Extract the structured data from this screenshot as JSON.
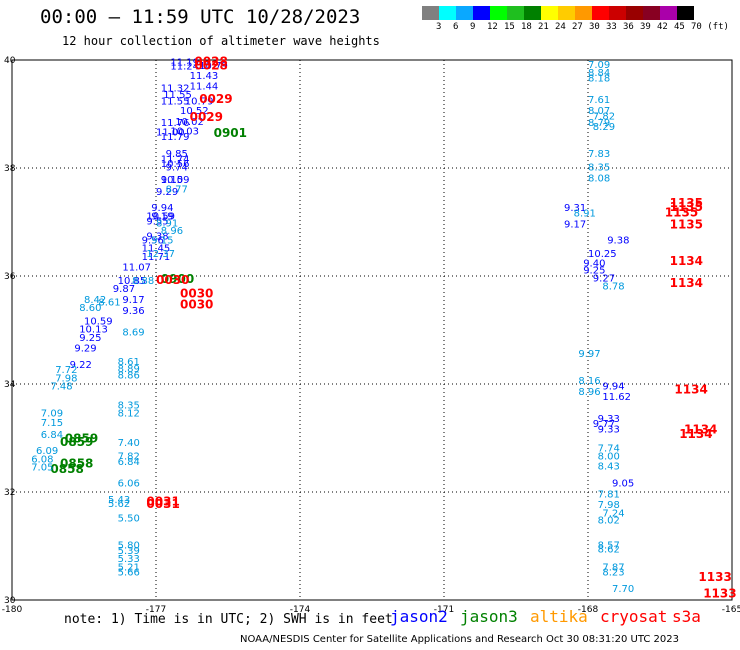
{
  "header": {
    "title": "00:00 – 11:59 UTC 10/28/2023",
    "subtitle": "12 hour collection of altimeter wave heights"
  },
  "colorbar": {
    "colors": [
      "#808080",
      "#00ffff",
      "#0aa8ff",
      "#0000ff",
      "#00ff00",
      "#1fbf1f",
      "#008000",
      "#ffff00",
      "#ffcc00",
      "#ff9900",
      "#ff0000",
      "#cc0000",
      "#990000",
      "#880022",
      "#aa00aa",
      "#000000"
    ],
    "labels": [
      "3",
      "6",
      "9",
      "12",
      "15",
      "18",
      "21",
      "24",
      "27",
      "30",
      "33",
      "36",
      "39",
      "42",
      "45",
      "70 (ft)"
    ]
  },
  "axes": {
    "x_ticks": [
      "-180",
      "-177",
      "-174",
      "-171",
      "-168",
      "-165"
    ],
    "y_ticks": [
      "30",
      "32",
      "34",
      "36",
      "38",
      "40"
    ]
  },
  "palette": {
    "jason2": "#0000ff",
    "jason3": "#008000",
    "altika": "#ff9900",
    "cryosat": "#ff0000",
    "s3a": "#ff0000",
    "small": "#0099dd",
    "light": "#00ccff"
  },
  "chart_data": {
    "type": "scatter",
    "xlabel": "",
    "ylabel": "",
    "xlim": [
      -180,
      -165
    ],
    "ylim": [
      30,
      40
    ],
    "series": [
      {
        "name": "jason2",
        "points": [
          [
            -176.7,
            39.9,
            "11.19"
          ],
          [
            -176.7,
            39.82,
            "11.24"
          ],
          [
            -176.1,
            39.83,
            "10.79"
          ],
          [
            -176.3,
            39.65,
            "11.43"
          ],
          [
            -176.3,
            39.45,
            "11.44"
          ],
          [
            -176.9,
            39.42,
            "11.32"
          ],
          [
            -176.85,
            39.3,
            "11.55"
          ],
          [
            -176.9,
            39.18,
            "11.55"
          ],
          [
            -176.4,
            39.18,
            "10.79"
          ],
          [
            -176.5,
            39.0,
            "10.52"
          ],
          [
            -176.6,
            38.8,
            "10.02"
          ],
          [
            -176.7,
            38.62,
            "10.03"
          ],
          [
            -176.9,
            38.78,
            "11.76"
          ],
          [
            -176.9,
            38.52,
            "11.79"
          ],
          [
            -177.0,
            38.6,
            "11.00"
          ],
          [
            -176.9,
            38.1,
            "11.74"
          ],
          [
            -176.9,
            38.02,
            "10.56"
          ],
          [
            -176.8,
            38.2,
            "9.85"
          ],
          [
            -176.8,
            37.95,
            "9.74"
          ],
          [
            -176.9,
            37.72,
            "10.59"
          ],
          [
            -176.9,
            37.72,
            "9.10"
          ],
          [
            -177.0,
            37.5,
            "9.29"
          ],
          [
            -177.1,
            37.2,
            "9.94"
          ],
          [
            -177.2,
            37.05,
            "10.59"
          ],
          [
            -177.2,
            36.95,
            "9.55"
          ],
          [
            -177.1,
            37.05,
            "9.19"
          ],
          [
            -177.2,
            36.68,
            "9.38"
          ],
          [
            -177.3,
            36.6,
            "9.56"
          ],
          [
            -177.3,
            36.45,
            "11.45"
          ],
          [
            -177.3,
            36.3,
            "11.71"
          ],
          [
            -177.7,
            36.1,
            "11.07"
          ],
          [
            -177.8,
            35.85,
            "10.85"
          ],
          [
            -177.9,
            35.7,
            "9.87"
          ],
          [
            -178.5,
            35.1,
            "10.59"
          ],
          [
            -178.6,
            34.95,
            "10.13"
          ],
          [
            -178.6,
            34.8,
            "9.25"
          ],
          [
            -178.7,
            34.6,
            "9.29"
          ],
          [
            -178.8,
            34.3,
            "9.22"
          ],
          [
            -177.7,
            35.5,
            "9.17"
          ],
          [
            -177.7,
            35.3,
            "9.36"
          ],
          [
            -168.5,
            37.2,
            "9.31"
          ],
          [
            -168.5,
            36.9,
            "9.17"
          ],
          [
            -168.0,
            36.35,
            "10.25"
          ],
          [
            -168.1,
            36.18,
            "9.40"
          ],
          [
            -168.1,
            36.05,
            "9.25"
          ],
          [
            -167.9,
            35.9,
            "9.27"
          ],
          [
            -167.6,
            36.6,
            "9.38"
          ],
          [
            -167.7,
            33.9,
            "9.94"
          ],
          [
            -167.7,
            33.7,
            "11.62"
          ],
          [
            -167.8,
            33.3,
            "9.33"
          ],
          [
            -167.8,
            33.1,
            "9.33"
          ],
          [
            -167.9,
            33.2,
            "9.77"
          ],
          [
            -167.5,
            32.1,
            "9.05"
          ]
        ]
      },
      {
        "name": "jason3",
        "points": [
          [
            -175.8,
            38.57,
            "0901"
          ],
          [
            -176.9,
            35.87,
            "0900"
          ],
          [
            -178.9,
            32.92,
            "0859"
          ],
          [
            -179.0,
            32.85,
            "0859"
          ],
          [
            -179.0,
            32.45,
            "0858"
          ],
          [
            -179.2,
            32.35,
            "0858"
          ]
        ]
      },
      {
        "name": "cryosat",
        "points": [
          [
            -176.2,
            39.9,
            "0028"
          ],
          [
            -176.2,
            39.82,
            "0028"
          ],
          [
            -176.1,
            39.2,
            "0029"
          ],
          [
            -176.3,
            38.87,
            "0029"
          ],
          [
            -177.0,
            35.85,
            "0030"
          ],
          [
            -176.5,
            35.6,
            "0030"
          ],
          [
            -176.5,
            35.4,
            "0030"
          ],
          [
            -177.2,
            31.75,
            "0031"
          ],
          [
            -177.2,
            31.7,
            "0031"
          ],
          [
            -166.3,
            37.28,
            "1135"
          ],
          [
            -166.3,
            37.2,
            "1135"
          ],
          [
            -166.4,
            37.1,
            "1135"
          ],
          [
            -166.3,
            36.88,
            "1135"
          ],
          [
            -166.3,
            36.2,
            "1134"
          ],
          [
            -166.3,
            35.8,
            "1134"
          ],
          [
            -166.2,
            33.82,
            "1134"
          ],
          [
            -166.0,
            33.08,
            "1134"
          ],
          [
            -166.1,
            33.0,
            "1134"
          ],
          [
            -165.7,
            30.35,
            "1133"
          ],
          [
            -165.6,
            30.05,
            "1133"
          ]
        ]
      },
      {
        "name": "small",
        "points": [
          [
            -168.0,
            39.85,
            "7.09"
          ],
          [
            -168.0,
            39.7,
            "8.84"
          ],
          [
            -168.0,
            39.6,
            "8.18"
          ],
          [
            -168.0,
            39.2,
            "7.61"
          ],
          [
            -168.0,
            39.0,
            "8.07"
          ],
          [
            -167.9,
            38.9,
            "7.82"
          ],
          [
            -168.0,
            38.78,
            "8.79"
          ],
          [
            -167.9,
            38.7,
            "8.29"
          ],
          [
            -168.0,
            38.2,
            "7.83"
          ],
          [
            -168.0,
            37.95,
            "8.35"
          ],
          [
            -168.0,
            37.75,
            "8.08"
          ],
          [
            -168.3,
            37.1,
            "8.91"
          ],
          [
            -167.7,
            35.75,
            "8.78"
          ],
          [
            -168.2,
            34.5,
            "9.97"
          ],
          [
            -168.2,
            34.0,
            "8.16"
          ],
          [
            -168.2,
            33.8,
            "8.96"
          ],
          [
            -167.8,
            32.75,
            "7.74"
          ],
          [
            -167.8,
            32.6,
            "8.00"
          ],
          [
            -167.8,
            32.42,
            "8.43"
          ],
          [
            -167.8,
            31.9,
            "7.81"
          ],
          [
            -167.8,
            31.7,
            "7.98"
          ],
          [
            -167.7,
            31.55,
            "7.24"
          ],
          [
            -167.8,
            31.42,
            "8.02"
          ],
          [
            -167.8,
            30.95,
            "8.57"
          ],
          [
            -167.8,
            30.88,
            "8.62"
          ],
          [
            -167.7,
            30.55,
            "7.87"
          ],
          [
            -167.7,
            30.45,
            "8.23"
          ],
          [
            -167.5,
            30.15,
            "7.70"
          ],
          [
            -177.7,
            34.9,
            "8.69"
          ],
          [
            -177.8,
            34.35,
            "8.61"
          ],
          [
            -177.8,
            34.22,
            "8.89"
          ],
          [
            -177.8,
            34.1,
            "8.86"
          ],
          [
            -177.8,
            33.55,
            "8.35"
          ],
          [
            -177.8,
            33.4,
            "8.12"
          ],
          [
            -177.8,
            32.85,
            "7.40"
          ],
          [
            -177.8,
            32.6,
            "7.82"
          ],
          [
            -177.8,
            32.5,
            "6.84"
          ],
          [
            -177.8,
            32.1,
            "6.06"
          ],
          [
            -178.0,
            31.8,
            "5.43"
          ],
          [
            -178.0,
            31.72,
            "5.62"
          ],
          [
            -177.8,
            31.45,
            "5.50"
          ],
          [
            -177.8,
            30.95,
            "5.80"
          ],
          [
            -177.8,
            30.85,
            "5.39"
          ],
          [
            -177.8,
            30.7,
            "5.33"
          ],
          [
            -177.8,
            30.55,
            "5.21"
          ],
          [
            -177.8,
            30.45,
            "5.66"
          ],
          [
            -176.8,
            37.55,
            "8.77"
          ],
          [
            -177.0,
            36.92,
            "8.91"
          ],
          [
            -176.9,
            36.78,
            "8.96"
          ],
          [
            -177.1,
            36.6,
            "9.15"
          ],
          [
            -177.2,
            36.35,
            "12.37"
          ],
          [
            -177.5,
            35.85,
            "8.88"
          ],
          [
            -178.5,
            35.5,
            "8.42"
          ],
          [
            -178.6,
            35.35,
            "8.60"
          ],
          [
            -178.2,
            35.45,
            "8.61"
          ],
          [
            -179.1,
            34.2,
            "7.72"
          ],
          [
            -179.1,
            34.05,
            "7.98"
          ],
          [
            -179.2,
            33.9,
            "7.48"
          ],
          [
            -179.4,
            33.4,
            "7.09"
          ],
          [
            -179.4,
            33.22,
            "7.15"
          ],
          [
            -179.4,
            33.0,
            "6.84"
          ],
          [
            -179.5,
            32.7,
            "6.09"
          ],
          [
            -179.6,
            32.55,
            "6.08"
          ],
          [
            -179.6,
            32.4,
            "7.05"
          ]
        ]
      }
    ]
  },
  "footer": {
    "note": "note: 1) Time is in UTC; 2) SWH is in feet",
    "credit": "NOAA/NESDIS Center for Satellite Applications and Research   Oct 30 08:31:20 UTC 2023"
  },
  "legend": [
    {
      "label": "jason2",
      "color": "#0000ff"
    },
    {
      "label": "jason3",
      "color": "#008000"
    },
    {
      "label": "altika",
      "color": "#ff9900"
    },
    {
      "label": "cryosat",
      "color": "#ff0000"
    },
    {
      "label": "s3a",
      "color": "#ff0000"
    }
  ]
}
